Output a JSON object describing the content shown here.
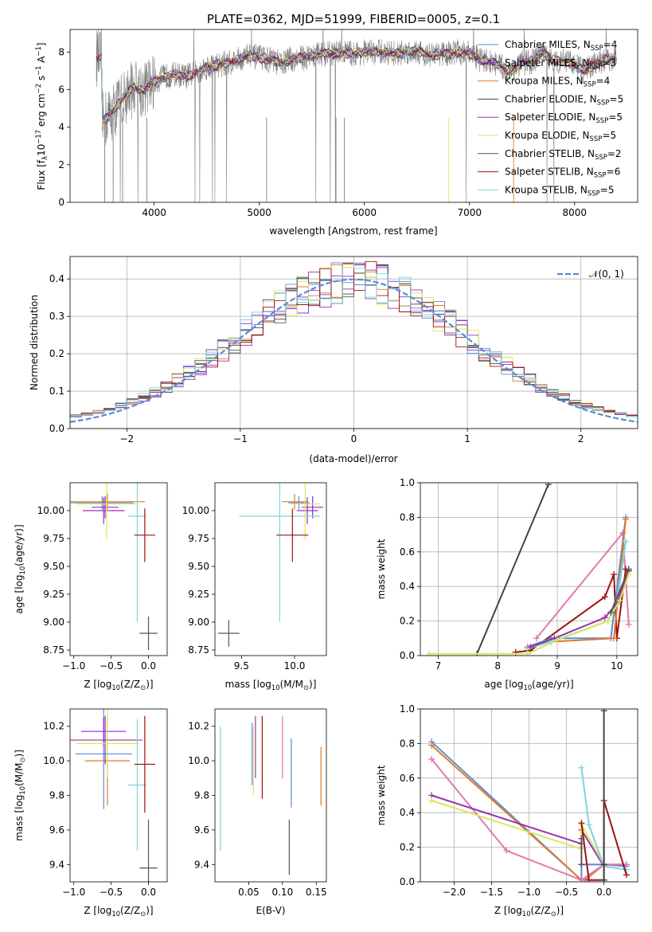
{
  "title": "PLATE=0362, MJD=51999, FIBERID=0005, z=0.1",
  "colors": {
    "chabrier_miles": "#5b8bd6",
    "salpeter_miles": "#8a2be2",
    "kroupa_miles": "#e07b2a",
    "chabrier_elodie": "#444444",
    "salpeter_elodie": "#9b2fae",
    "kroupa_elodie": "#d7e85a",
    "chabrier_stelib": "#555555",
    "salpeter_stelib": "#a01010",
    "kroupa_stelib": "#7ad6d9",
    "pink": "#e377b0",
    "gray_spectrum": "#808080"
  },
  "chart_data": [
    {
      "id": "spectrum",
      "type": "line",
      "xlabel": "wavelength [Angstrom, rest frame]",
      "ylabel_parts": [
        "Flux [f",
        "λ",
        "10",
        "−17",
        " erg cm",
        "−2",
        " s",
        "−1",
        " A",
        "−1",
        "]"
      ],
      "xlim": [
        3200,
        8600
      ],
      "ylim": [
        0,
        9.2
      ],
      "xticks": [
        4000,
        5000,
        6000,
        7000,
        8000
      ],
      "xtick_labels": [
        "4000",
        "5000",
        "6000",
        "7000",
        "8000"
      ],
      "yticks": [
        0,
        2,
        4,
        6,
        8
      ],
      "ytick_labels": [
        "0",
        "2",
        "4",
        "6",
        "8"
      ],
      "legend_position": "top-right",
      "legend": [
        {
          "name": "Chabrier MILES, N",
          "sub": "SSP",
          "suffix": "=4",
          "color": "#5b8bd6"
        },
        {
          "name": "Salpeter MILES, N",
          "sub": "SSP",
          "suffix": "=3",
          "color": "#8a2be2"
        },
        {
          "name": "Kroupa MILES, N",
          "sub": "SSP",
          "suffix": "=4",
          "color": "#e07b2a"
        },
        {
          "name": "Chabrier ELODIE, N",
          "sub": "SSP",
          "suffix": "=5",
          "color": "#444444"
        },
        {
          "name": "Salpeter ELODIE, N",
          "sub": "SSP",
          "suffix": "=5",
          "color": "#9b2fae"
        },
        {
          "name": "Kroupa ELODIE, N",
          "sub": "SSP",
          "suffix": "=5",
          "color": "#d7e85a"
        },
        {
          "name": "Chabrier STELIB, N",
          "sub": "SSP",
          "suffix": "=2",
          "color": "#555555"
        },
        {
          "name": "Salpeter STELIB, N",
          "sub": "SSP",
          "suffix": "=6",
          "color": "#a01010"
        },
        {
          "name": "Kroupa STELIB, N",
          "sub": "SSP",
          "suffix": "=5",
          "color": "#7ad6d9"
        }
      ],
      "series_model": {
        "x": [
          3500,
          3600,
          3700,
          3800,
          3900,
          4000,
          4100,
          4200,
          4300,
          4400,
          4500,
          4600,
          4700,
          4800,
          4900,
          5000,
          5100,
          5200,
          5300,
          5400,
          5500,
          5600,
          5700,
          5800,
          5900,
          6000,
          6100,
          6200,
          6300,
          6400,
          6500,
          6600,
          6700,
          6800,
          6900,
          7000,
          7100,
          7200,
          7300,
          7400,
          7500,
          7600,
          7700,
          7800,
          7900,
          8000,
          8100,
          8200,
          8300,
          8400
        ],
        "y": [
          4.2,
          4.8,
          5.5,
          6.1,
          6.0,
          6.4,
          6.7,
          6.8,
          6.7,
          6.9,
          7.2,
          7.3,
          7.4,
          7.6,
          7.8,
          7.7,
          7.6,
          7.4,
          7.6,
          7.7,
          7.8,
          7.9,
          7.9,
          8.0,
          7.9,
          8.0,
          8.0,
          8.0,
          7.9,
          8.0,
          8.1,
          7.8,
          7.9,
          7.9,
          8.0,
          7.9,
          7.6,
          7.5,
          7.2,
          7.0,
          7.4,
          7.5,
          7.9,
          7.6,
          7.5,
          7.3,
          7.0,
          7.4,
          7.6,
          7.7
        ]
      }
    },
    {
      "id": "residuals",
      "type": "histogram",
      "xlabel": "(data-model)/error",
      "ylabel": "Normed distribution",
      "xlim": [
        -2.5,
        2.5
      ],
      "ylim": [
        0,
        0.46
      ],
      "xticks": [
        -2,
        -1,
        0,
        1,
        2
      ],
      "xtick_labels": [
        "−2",
        "−1",
        "0",
        "1",
        "2"
      ],
      "yticks": [
        0,
        0.1,
        0.2,
        0.3,
        0.4
      ],
      "ytick_labels": [
        "0.0",
        "0.1",
        "0.2",
        "0.3",
        "0.4"
      ],
      "grid": true,
      "legend_label": "𝒩(0, 1)",
      "legend_position": "top-right",
      "bin_width": 0.1,
      "bin_start": -2.5,
      "normal": {
        "mean": 0,
        "sigma": 1,
        "color": "#5b8bd6"
      }
    },
    {
      "id": "age_vs_Z",
      "type": "errorbar",
      "xlabel_parts": [
        "Z [log",
        "10",
        "(Z/Z",
        "⊙",
        ")]"
      ],
      "ylabel_parts": [
        "age  [log",
        "10",
        "(age/yr)]"
      ],
      "xlim": [
        -1.05,
        0.25
      ],
      "ylim": [
        8.7,
        10.25
      ],
      "xticks": [
        -1.0,
        -0.5,
        0.0
      ],
      "xtick_labels": [
        "−1.0",
        "−0.5",
        "0.0"
      ],
      "yticks": [
        8.75,
        9.0,
        9.25,
        9.5,
        9.75,
        10.0
      ],
      "ytick_labels": [
        "8.75",
        "9.00",
        "9.25",
        "9.50",
        "9.75",
        "10.00"
      ],
      "points": [
        {
          "x": -0.62,
          "xerr": 0.42,
          "y": 10.07,
          "yerr": 0.06,
          "color": "#5b8bd6"
        },
        {
          "x": -0.58,
          "xerr": 0.18,
          "y": 10.03,
          "yerr": 0.1,
          "color": "#8a2be2"
        },
        {
          "x": -0.55,
          "xerr": 0.5,
          "y": 10.08,
          "yerr": 0.07,
          "color": "#e07b2a"
        },
        {
          "x": -0.6,
          "xerr": 0.28,
          "y": 10.0,
          "yerr": 0.12,
          "color": "#9b2fae"
        },
        {
          "x": -0.56,
          "xerr": 0.4,
          "y": 10.06,
          "yerr": 0.32,
          "color": "#d7e85a"
        },
        {
          "x": -0.15,
          "xerr": 0.12,
          "y": 9.95,
          "yerr": 0.95,
          "color": "#7ad6d9"
        },
        {
          "x": -0.05,
          "xerr": 0.14,
          "y": 9.78,
          "yerr": 0.24,
          "color": "#a01010"
        },
        {
          "x": 0.0,
          "xerr": 0.12,
          "y": 8.9,
          "yerr": 0.15,
          "color": "#555555"
        }
      ]
    },
    {
      "id": "age_vs_mass",
      "type": "errorbar",
      "xlabel_parts": [
        "mass [log",
        "10",
        "(M/M",
        "⊙",
        ")]"
      ],
      "ylabel_parts": [],
      "xlim": [
        9.25,
        10.3
      ],
      "ylim": [
        8.7,
        10.25
      ],
      "xticks": [
        9.5,
        10.0
      ],
      "xtick_labels": [
        "9.5",
        "10.0"
      ],
      "yticks": [
        8.75,
        9.0,
        9.25,
        9.5,
        9.75,
        10.0
      ],
      "ytick_labels": [
        "8.75",
        "9.00",
        "9.25",
        "9.50",
        "9.75",
        "10.00"
      ],
      "points": [
        {
          "x": 10.04,
          "xerr": 0.1,
          "y": 10.07,
          "yerr": 0.06,
          "color": "#5b8bd6"
        },
        {
          "x": 10.17,
          "xerr": 0.1,
          "y": 10.03,
          "yerr": 0.1,
          "color": "#8a2be2"
        },
        {
          "x": 10.0,
          "xerr": 0.12,
          "y": 10.08,
          "yerr": 0.07,
          "color": "#e07b2a"
        },
        {
          "x": 10.12,
          "xerr": 0.1,
          "y": 10.0,
          "yerr": 0.12,
          "color": "#9b2fae"
        },
        {
          "x": 10.1,
          "xerr": 0.14,
          "y": 10.06,
          "yerr": 0.32,
          "color": "#d7e85a"
        },
        {
          "x": 9.86,
          "xerr": 0.38,
          "y": 9.95,
          "yerr": 0.95,
          "color": "#7ad6d9"
        },
        {
          "x": 9.98,
          "xerr": 0.15,
          "y": 9.78,
          "yerr": 0.24,
          "color": "#a01010"
        },
        {
          "x": 9.38,
          "xerr": 0.1,
          "y": 8.9,
          "yerr": 0.12,
          "color": "#555555"
        }
      ]
    },
    {
      "id": "weight_vs_age",
      "type": "line",
      "xlabel_parts": [
        "age  [log",
        "10",
        "(age/yr)]"
      ],
      "ylabel": "mass weight",
      "xlim": [
        6.7,
        10.35
      ],
      "ylim": [
        0,
        1.0
      ],
      "xticks": [
        7,
        8,
        9,
        10
      ],
      "xtick_labels": [
        "7",
        "8",
        "9",
        "10"
      ],
      "yticks": [
        0,
        0.2,
        0.4,
        0.6,
        0.8,
        1.0
      ],
      "ytick_labels": [
        "0.0",
        "0.2",
        "0.4",
        "0.6",
        "0.8",
        "1.0"
      ],
      "grid": true,
      "series": [
        {
          "color": "#444444",
          "x": [
            7.65,
            8.85
          ],
          "y": [
            0.01,
            0.99
          ]
        },
        {
          "color": "#e377b0",
          "x": [
            8.65,
            10.1,
            10.2
          ],
          "y": [
            0.1,
            0.71,
            0.18
          ]
        },
        {
          "color": "#a01010",
          "x": [
            8.3,
            8.55,
            9.8,
            9.95,
            10.0,
            10.15,
            10.2
          ],
          "y": [
            0.02,
            0.03,
            0.34,
            0.47,
            0.1,
            0.5,
            0.49
          ]
        },
        {
          "color": "#5b8bd6",
          "x": [
            8.5,
            8.9,
            9.9,
            10.15
          ],
          "y": [
            0.05,
            0.1,
            0.1,
            0.8
          ]
        },
        {
          "color": "#e07b2a",
          "x": [
            8.5,
            8.9,
            9.95,
            10.15
          ],
          "y": [
            0.05,
            0.08,
            0.1,
            0.79
          ]
        },
        {
          "color": "#7ad6d9",
          "x": [
            8.5,
            8.9,
            9.85,
            10.0,
            10.15
          ],
          "y": [
            0.04,
            0.08,
            0.2,
            0.3,
            0.66
          ]
        },
        {
          "color": "#9b2fae",
          "x": [
            8.55,
            8.95,
            9.8,
            10.0,
            10.2
          ],
          "y": [
            0.05,
            0.1,
            0.22,
            0.3,
            0.5
          ]
        },
        {
          "color": "#d7e85a",
          "x": [
            6.85,
            8.5,
            9.0,
            9.85,
            10.05,
            10.2
          ],
          "y": [
            0.01,
            0.01,
            0.09,
            0.2,
            0.32,
            0.47
          ]
        },
        {
          "color": "#555555",
          "x": [
            9.9,
            10.2
          ],
          "y": [
            0.25,
            0.5
          ]
        }
      ]
    },
    {
      "id": "mass_vs_Z",
      "type": "errorbar",
      "xlabel_parts": [
        "Z [log",
        "10",
        "(Z/Z",
        "⊙",
        ")]"
      ],
      "ylabel_parts": [
        "mass [log",
        "10",
        "(M/M",
        "⊙",
        ")]"
      ],
      "xlim": [
        -1.05,
        0.25
      ],
      "ylim": [
        9.3,
        10.3
      ],
      "xticks": [
        -1.0,
        -0.5,
        0.0
      ],
      "xtick_labels": [
        "−1.0",
        "−0.5",
        "0.0"
      ],
      "yticks": [
        9.4,
        9.6,
        9.8,
        10.0,
        10.2
      ],
      "ytick_labels": [
        "9.4",
        "9.6",
        "9.8",
        "10.0",
        "10.2"
      ],
      "points": [
        {
          "x": -0.6,
          "xerr": 0.38,
          "y": 10.04,
          "yerr": 0.32,
          "color": "#5b8bd6"
        },
        {
          "x": -0.6,
          "xerr": 0.3,
          "y": 10.17,
          "yerr": 0.08,
          "color": "#8a2be2"
        },
        {
          "x": -0.55,
          "xerr": 0.3,
          "y": 10.0,
          "yerr": 0.26,
          "color": "#e07b2a"
        },
        {
          "x": -0.58,
          "xerr": 0.5,
          "y": 10.12,
          "yerr": 0.14,
          "color": "#9b2fae"
        },
        {
          "x": -0.55,
          "xerr": 0.42,
          "y": 10.1,
          "yerr": 0.2,
          "color": "#d7e85a"
        },
        {
          "x": -0.15,
          "xerr": 0.12,
          "y": 9.86,
          "yerr": 0.38,
          "color": "#7ad6d9"
        },
        {
          "x": -0.05,
          "xerr": 0.14,
          "y": 9.98,
          "yerr": 0.28,
          "color": "#a01010"
        },
        {
          "x": 0.0,
          "xerr": 0.12,
          "y": 9.38,
          "yerr": 0.28,
          "color": "#555555"
        }
      ]
    },
    {
      "id": "mass_vs_ebv",
      "type": "errorbar",
      "xlabel": "E(B-V)",
      "xlim": [
        0.0,
        0.165
      ],
      "ylim": [
        9.3,
        10.3
      ],
      "xticks": [
        0.05,
        0.1,
        0.15
      ],
      "xtick_labels": [
        "0.05",
        "0.10",
        "0.15"
      ],
      "yticks": [
        9.4,
        9.6,
        9.8,
        10.0,
        10.2
      ],
      "ytick_labels": [
        "9.4",
        "9.6",
        "9.8",
        "10.0",
        "10.2"
      ],
      "points": [
        {
          "x": 0.008,
          "xerr": 0,
          "y": 9.84,
          "yerr": 0.36,
          "color": "#7ad6d9"
        },
        {
          "x": 0.055,
          "xerr": 0,
          "y": 10.04,
          "yerr": 0.18,
          "color": "#5b8bd6"
        },
        {
          "x": 0.057,
          "xerr": 0,
          "y": 10.0,
          "yerr": 0.2,
          "color": "#d7e85a"
        },
        {
          "x": 0.06,
          "xerr": 0,
          "y": 10.08,
          "yerr": 0.18,
          "color": "#9b2fae"
        },
        {
          "x": 0.07,
          "xerr": 0,
          "y": 10.02,
          "yerr": 0.24,
          "color": "#a01010"
        },
        {
          "x": 0.1,
          "xerr": 0,
          "y": 10.08,
          "yerr": 0.18,
          "color": "#e377b0"
        },
        {
          "x": 0.11,
          "xerr": 0,
          "y": 9.5,
          "yerr": 0.16,
          "color": "#555555"
        },
        {
          "x": 0.113,
          "xerr": 0,
          "y": 9.93,
          "yerr": 0.2,
          "color": "#5b8bd6"
        },
        {
          "x": 0.157,
          "xerr": 0,
          "y": 9.91,
          "yerr": 0.17,
          "color": "#e07b2a"
        }
      ]
    },
    {
      "id": "weight_vs_Z",
      "type": "line",
      "xlabel_parts": [
        "Z [log",
        "10",
        "(Z/Z",
        "⊙",
        ")]"
      ],
      "ylabel": "mass weight",
      "xlim": [
        -2.45,
        0.45
      ],
      "ylim": [
        0,
        1.0
      ],
      "xticks": [
        -2.0,
        -1.5,
        -1.0,
        -0.5,
        0.0
      ],
      "xtick_labels": [
        "−2.0",
        "−1.5",
        "−1.0",
        "−0.5",
        "0.0"
      ],
      "yticks": [
        0,
        0.2,
        0.4,
        0.6,
        0.8,
        1.0
      ],
      "ytick_labels": [
        "0.0",
        "0.2",
        "0.4",
        "0.6",
        "0.8",
        "1.0"
      ],
      "grid": true,
      "series": [
        {
          "color": "#5b8bd6",
          "x": [
            -2.3,
            -0.3,
            -0.3,
            0.0,
            0.3
          ],
          "y": [
            0.81,
            0.01,
            0.1,
            0.1,
            0.09
          ]
        },
        {
          "color": "#e07b2a",
          "x": [
            -2.3,
            -0.3,
            -0.25,
            0.0,
            0.3
          ],
          "y": [
            0.79,
            0.01,
            0.01,
            0.1,
            0.1
          ]
        },
        {
          "color": "#e377b0",
          "x": [
            -2.3,
            -1.3,
            -0.3,
            0.0,
            0.3
          ],
          "y": [
            0.71,
            0.18,
            0.01,
            0.1,
            0.1
          ]
        },
        {
          "color": "#9b2fae",
          "x": [
            -2.3,
            -0.3,
            -0.3,
            0.0
          ],
          "y": [
            0.5,
            0.22,
            0.3,
            0.09
          ]
        },
        {
          "color": "#d7e85a",
          "x": [
            -2.3,
            -0.3,
            -0.3,
            0.0
          ],
          "y": [
            0.47,
            0.19,
            0.33,
            0.1
          ]
        },
        {
          "color": "#7ad6d9",
          "x": [
            -0.3,
            -0.2,
            0.0,
            0.3
          ],
          "y": [
            0.66,
            0.33,
            0.09,
            0.07
          ]
        },
        {
          "color": "#a01010",
          "x": [
            -0.3,
            -0.2,
            0.0,
            0.0,
            0.3
          ],
          "y": [
            0.34,
            0.01,
            0.01,
            0.47,
            0.04
          ]
        },
        {
          "color": "#444444",
          "x": [
            0.0,
            0.0,
            0.0
          ],
          "y": [
            0.99,
            0.01,
            0.1
          ]
        },
        {
          "color": "#555555",
          "x": [
            -0.3,
            -0.3
          ],
          "y": [
            0.25,
            0.1
          ]
        }
      ]
    }
  ]
}
